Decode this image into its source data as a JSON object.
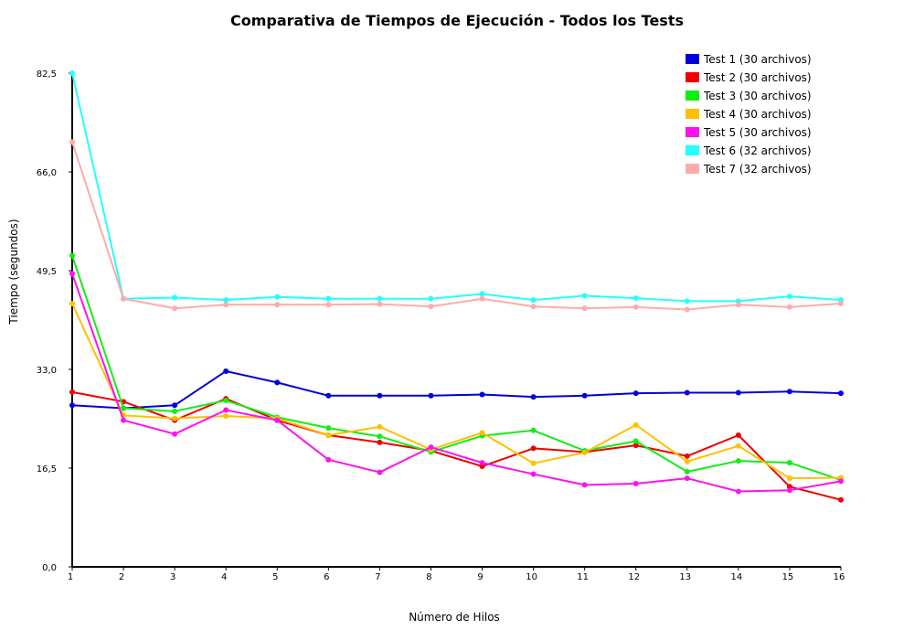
{
  "chart_data": {
    "type": "line",
    "title": "Comparativa de Tiempos de Ejecución - Todos los Tests",
    "xlabel": "Número de Hilos",
    "ylabel": "Tiempo (segundos)",
    "x": [
      1,
      2,
      3,
      4,
      5,
      6,
      7,
      8,
      9,
      10,
      11,
      12,
      13,
      14,
      15,
      16
    ],
    "x_tick_labels": [
      "1",
      "2",
      "3",
      "4",
      "5",
      "6",
      "7",
      "8",
      "9",
      "10",
      "11",
      "12",
      "13",
      "14",
      "15",
      "16"
    ],
    "xlim": [
      1,
      16
    ],
    "ylim": [
      0,
      82.5
    ],
    "y_ticks": [
      0,
      16.5,
      33,
      49.5,
      66,
      82.5
    ],
    "y_tick_labels": [
      "0,0",
      "16,5",
      "33,0",
      "49,5",
      "66,0",
      "82,5"
    ],
    "grid": false,
    "legend_position": "top-right",
    "series": [
      {
        "name": "Test 1 (30 archivos)",
        "color": "#0000dd",
        "values": [
          27.0,
          26.5,
          27.0,
          32.7,
          30.8,
          28.6,
          28.6,
          28.6,
          28.8,
          28.4,
          28.6,
          29.0,
          29.1,
          29.1,
          29.3,
          29.0
        ]
      },
      {
        "name": "Test 2 (30 archivos)",
        "color": "#ee0000",
        "values": [
          29.2,
          27.6,
          24.5,
          28.1,
          24.5,
          22.0,
          20.8,
          19.4,
          16.8,
          19.8,
          19.2,
          20.3,
          18.5,
          22.0,
          13.4,
          11.2
        ]
      },
      {
        "name": "Test 3 (30 archivos)",
        "color": "#11ee11",
        "values": [
          52.0,
          26.5,
          26.0,
          27.8,
          25.0,
          23.2,
          21.8,
          19.2,
          21.9,
          22.8,
          19.4,
          21.0,
          15.9,
          17.7,
          17.4,
          14.5
        ]
      },
      {
        "name": "Test 4 (30 archivos)",
        "color": "#ffc000",
        "values": [
          44.0,
          25.3,
          24.8,
          25.2,
          24.8,
          22.0,
          23.4,
          19.6,
          22.4,
          17.3,
          19.1,
          23.7,
          17.6,
          20.2,
          14.8,
          14.9
        ]
      },
      {
        "name": "Test 5 (30 archivos)",
        "color": "#ff11ee",
        "values": [
          49.0,
          24.5,
          22.2,
          26.2,
          24.5,
          17.9,
          15.8,
          20.0,
          17.4,
          15.5,
          13.7,
          13.9,
          14.8,
          12.6,
          12.8,
          14.3
        ]
      },
      {
        "name": "Test 6 (32 archivos)",
        "color": "#22ffff",
        "values": [
          82.5,
          44.8,
          45.0,
          44.6,
          45.1,
          44.8,
          44.8,
          44.8,
          45.6,
          44.6,
          45.3,
          44.9,
          44.4,
          44.4,
          45.2,
          44.6
        ]
      },
      {
        "name": "Test 7 (32 archivos)",
        "color": "#ffaaaa",
        "values": [
          71.0,
          44.8,
          43.2,
          43.8,
          43.8,
          43.8,
          43.9,
          43.5,
          44.8,
          43.5,
          43.2,
          43.4,
          43.0,
          43.8,
          43.4,
          44.0
        ]
      }
    ]
  }
}
